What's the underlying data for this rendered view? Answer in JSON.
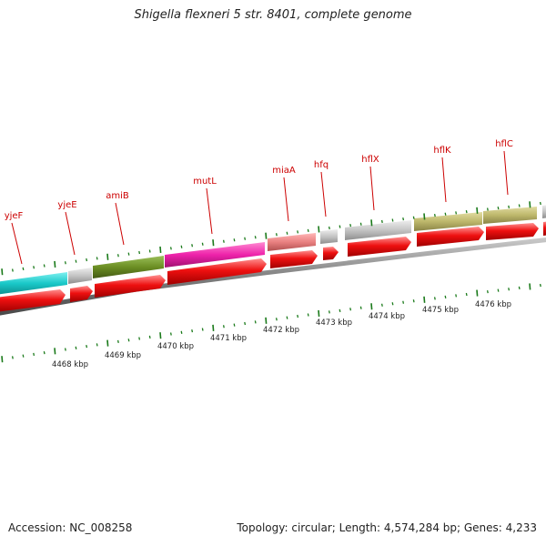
{
  "title": "Shigella flexneri 5 str. 8401, complete genome",
  "accession": "Accession: NC_008258",
  "summary": "Topology: circular; Length: 4,574,284 bp; Genes: 4,233",
  "genes": [
    {
      "name": "yjeF"
    },
    {
      "name": "yjeE"
    },
    {
      "name": "amiB"
    },
    {
      "name": "mutL"
    },
    {
      "name": "miaA"
    },
    {
      "name": "hfq"
    },
    {
      "name": "hflX"
    },
    {
      "name": "hflK"
    },
    {
      "name": "hflC"
    }
  ],
  "scale_labels": [
    "4468 kbp",
    "4469 kbp",
    "4470 kbp",
    "4471 kbp",
    "4472 kbp",
    "4473 kbp",
    "4474 kbp",
    "4475 kbp",
    "4476 kbp"
  ],
  "colors": {
    "gene_label": "#cc0000",
    "tick": "#1a7a1a",
    "cds_arrow": "#ee0000",
    "backbone": "#808080"
  }
}
